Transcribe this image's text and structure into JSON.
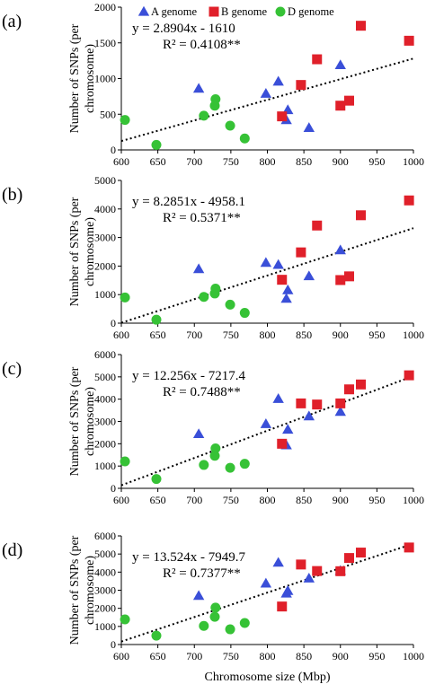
{
  "series_styles": {
    "A genome": {
      "color": "#3a4fd8",
      "shape": "triangle"
    },
    "B genome": {
      "color": "#e0202a",
      "shape": "square"
    },
    "D genome": {
      "color": "#36c236",
      "shape": "circle"
    }
  },
  "legend": {
    "items": [
      {
        "label": "A genome",
        "series": "A genome"
      },
      {
        "label": "B genome",
        "series": "B genome"
      },
      {
        "label": "D genome",
        "series": "D genome"
      }
    ]
  },
  "chart_data": [
    {
      "panel_label": "(a)",
      "type": "scatter",
      "xlabel": "",
      "ylabel": "Number of SNPs (per chromosome)",
      "xlim": [
        600,
        1000
      ],
      "ylim": [
        0,
        2000
      ],
      "x_ticks": [
        600,
        650,
        700,
        750,
        800,
        850,
        900,
        950,
        1000
      ],
      "y_ticks": [
        0,
        500,
        1000,
        1500,
        2000
      ],
      "equation": "y = 2.8904x - 1610",
      "r2": "R² = 0.4108**",
      "trendline": {
        "slope": 2.8904,
        "intercept": -1610
      },
      "series": [
        {
          "name": "A genome",
          "points": [
            [
              706,
              860
            ],
            [
              798,
              790
            ],
            [
              815,
              960
            ],
            [
              826,
              420
            ],
            [
              828,
              560
            ],
            [
              857,
              310
            ],
            [
              900,
              1190
            ]
          ]
        },
        {
          "name": "B genome",
          "points": [
            [
              820,
              470
            ],
            [
              846,
              910
            ],
            [
              868,
              1270
            ],
            [
              900,
              620
            ],
            [
              912,
              690
            ],
            [
              928,
              1740
            ],
            [
              994,
              1530
            ]
          ]
        },
        {
          "name": "D genome",
          "points": [
            [
              605,
              420
            ],
            [
              648,
              70
            ],
            [
              713,
              480
            ],
            [
              728,
              620
            ],
            [
              729,
              710
            ],
            [
              749,
              340
            ],
            [
              769,
              160
            ]
          ]
        }
      ]
    },
    {
      "panel_label": "(b)",
      "type": "scatter",
      "xlabel": "",
      "ylabel": "Number of SNPs (per chromosome)",
      "xlim": [
        600,
        1000
      ],
      "ylim": [
        0,
        5000
      ],
      "x_ticks": [
        600,
        650,
        700,
        750,
        800,
        850,
        900,
        950,
        1000
      ],
      "y_ticks": [
        0,
        1000,
        2000,
        3000,
        4000,
        5000
      ],
      "equation": "y = 8.2851x - 4958.1",
      "r2": "R² = 0.5371**",
      "trendline": {
        "slope": 8.2851,
        "intercept": -4958.1
      },
      "series": [
        {
          "name": "A genome",
          "points": [
            [
              706,
              1900
            ],
            [
              798,
              2120
            ],
            [
              815,
              2050
            ],
            [
              826,
              860
            ],
            [
              828,
              1160
            ],
            [
              857,
              1650
            ],
            [
              900,
              2560
            ]
          ]
        },
        {
          "name": "B genome",
          "points": [
            [
              820,
              1520
            ],
            [
              846,
              2480
            ],
            [
              868,
              3420
            ],
            [
              900,
              1510
            ],
            [
              912,
              1640
            ],
            [
              928,
              3780
            ],
            [
              994,
              4300
            ]
          ]
        },
        {
          "name": "D genome",
          "points": [
            [
              605,
              900
            ],
            [
              648,
              120
            ],
            [
              713,
              920
            ],
            [
              728,
              1040
            ],
            [
              729,
              1210
            ],
            [
              749,
              650
            ],
            [
              769,
              360
            ]
          ]
        }
      ]
    },
    {
      "panel_label": "(c)",
      "type": "scatter",
      "xlabel": "",
      "ylabel": "Number of SNPs (per chromosome)",
      "xlim": [
        600,
        1000
      ],
      "ylim": [
        0,
        6000
      ],
      "x_ticks": [
        600,
        650,
        700,
        750,
        800,
        850,
        900,
        950,
        1000
      ],
      "y_ticks": [
        0,
        1000,
        2000,
        3000,
        4000,
        5000,
        6000
      ],
      "equation": "y = 12.256x - 7217.4",
      "r2": "R² = 0.7488**",
      "trendline": {
        "slope": 12.256,
        "intercept": -7217.4
      },
      "series": [
        {
          "name": "A genome",
          "points": [
            [
              706,
              2440
            ],
            [
              798,
              2890
            ],
            [
              815,
              4020
            ],
            [
              826,
              1940
            ],
            [
              828,
              2640
            ],
            [
              857,
              3240
            ],
            [
              900,
              3440
            ]
          ]
        },
        {
          "name": "B genome",
          "points": [
            [
              820,
              2000
            ],
            [
              846,
              3810
            ],
            [
              868,
              3760
            ],
            [
              900,
              3810
            ],
            [
              912,
              4440
            ],
            [
              928,
              4660
            ],
            [
              994,
              5070
            ]
          ]
        },
        {
          "name": "D genome",
          "points": [
            [
              605,
              1210
            ],
            [
              648,
              420
            ],
            [
              713,
              1050
            ],
            [
              728,
              1460
            ],
            [
              729,
              1790
            ],
            [
              749,
              920
            ],
            [
              769,
              1100
            ]
          ]
        }
      ]
    },
    {
      "panel_label": "(d)",
      "type": "scatter",
      "xlabel": "Chromosome size (Mbp)",
      "ylabel": "Number of SNPs (per chromosome)",
      "xlim": [
        600,
        1000
      ],
      "ylim": [
        0,
        6000
      ],
      "x_ticks": [
        600,
        650,
        700,
        750,
        800,
        850,
        900,
        950,
        1000
      ],
      "y_ticks": [
        0,
        1000,
        2000,
        3000,
        4000,
        5000,
        6000
      ],
      "equation": "y = 13.524x - 7949.7",
      "r2": "R² = 0.7377**",
      "trendline": {
        "slope": 13.524,
        "intercept": -7949.7
      },
      "series": [
        {
          "name": "A genome",
          "points": [
            [
              706,
              2700
            ],
            [
              798,
              3380
            ],
            [
              815,
              4530
            ],
            [
              826,
              2830
            ],
            [
              828,
              2970
            ],
            [
              857,
              3660
            ],
            [
              900,
              4080
            ]
          ]
        },
        {
          "name": "B genome",
          "points": [
            [
              820,
              2100
            ],
            [
              846,
              4420
            ],
            [
              868,
              4060
            ],
            [
              900,
              4050
            ],
            [
              912,
              4780
            ],
            [
              928,
              5080
            ],
            [
              994,
              5360
            ]
          ]
        },
        {
          "name": "D genome",
          "points": [
            [
              605,
              1390
            ],
            [
              648,
              490
            ],
            [
              713,
              1030
            ],
            [
              728,
              1530
            ],
            [
              729,
              2040
            ],
            [
              749,
              840
            ],
            [
              769,
              1190
            ]
          ]
        }
      ]
    }
  ]
}
